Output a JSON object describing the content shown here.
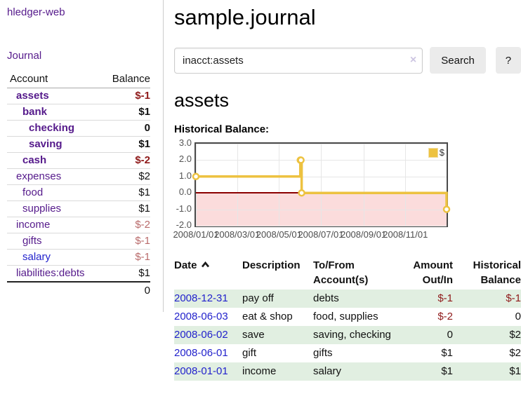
{
  "app": {
    "brand": "hledger-web",
    "nav_journal": "Journal"
  },
  "sidebar": {
    "accounts_table": {
      "headers": [
        "Account",
        "Balance"
      ],
      "rows": [
        {
          "name": "assets",
          "depth": 1,
          "bold": true,
          "balance": "$-1"
        },
        {
          "name": "bank",
          "depth": 2,
          "bold": true,
          "balance": "$1"
        },
        {
          "name": "checking",
          "depth": 3,
          "bold": true,
          "balance": "0"
        },
        {
          "name": "saving",
          "depth": 3,
          "bold": true,
          "balance": "$1"
        },
        {
          "name": "cash",
          "depth": 2,
          "bold": true,
          "balance": "$-2"
        },
        {
          "name": "expenses",
          "depth": 1,
          "bold": false,
          "balance": "$2"
        },
        {
          "name": "food",
          "depth": 2,
          "bold": false,
          "balance": "$1"
        },
        {
          "name": "supplies",
          "depth": 2,
          "bold": false,
          "balance": "$1"
        },
        {
          "name": "income",
          "depth": 1,
          "bold": false,
          "balance": "$-2"
        },
        {
          "name": "gifts",
          "depth": 2,
          "bold": false,
          "balance": "$-1"
        },
        {
          "name": "salary",
          "depth": 2,
          "bold": false,
          "balance": "$-1",
          "variant": "unvisited"
        },
        {
          "name": "liabilities:debts",
          "depth": 1,
          "bold": false,
          "balance": "$1"
        }
      ],
      "total": "0"
    }
  },
  "main": {
    "title": "sample.journal",
    "search": {
      "value": "inacct:assets",
      "clear_icon": "×",
      "button": "Search",
      "help_button": "?"
    },
    "account_heading": "assets",
    "chart_label": "Historical Balance:"
  },
  "chart_data": {
    "type": "line",
    "title": "Historical Balance:",
    "style": "steps",
    "series": [
      {
        "name": "$",
        "color": "#edc240",
        "points": [
          [
            "2008-01-01",
            1
          ],
          [
            "2008-06-01",
            2
          ],
          [
            "2008-06-02",
            2
          ],
          [
            "2008-06-03",
            0
          ],
          [
            "2008-12-31",
            -1
          ]
        ]
      }
    ],
    "y_ticks": [
      "3.0",
      "2.0",
      "1.0",
      "0.0",
      "-1.0",
      "-2.0"
    ],
    "x_ticks": [
      "2008/01/01",
      "2008/03/01",
      "2008/05/01",
      "2008/07/01",
      "2008/09/01",
      "2008/11/01"
    ],
    "ylim": [
      -2,
      3
    ],
    "xlim": [
      "2008-01-01",
      "2008-12-31"
    ],
    "grid": true,
    "legend_position": "top-right",
    "negative_region_fill": "#fbdcdc",
    "zero_line_color": "#8b0000"
  },
  "transactions": {
    "headers": [
      "Date",
      "Description",
      "To/From Account(s)",
      "Amount Out/In",
      "Historical Balance"
    ],
    "rows": [
      {
        "date": "2008-12-31",
        "description": "pay off",
        "accounts": "debts",
        "amount": "$-1",
        "balance": "$-1"
      },
      {
        "date": "2008-06-03",
        "description": "eat & shop",
        "accounts": "food, supplies",
        "amount": "$-2",
        "balance": "0"
      },
      {
        "date": "2008-06-02",
        "description": "save",
        "accounts": "saving, checking",
        "amount": "0",
        "balance": "$2"
      },
      {
        "date": "2008-06-01",
        "description": "gift",
        "accounts": "gifts",
        "amount": "$1",
        "balance": "$2"
      },
      {
        "date": "2008-01-01",
        "description": "income",
        "accounts": "salary",
        "amount": "$1",
        "balance": "$1"
      }
    ]
  }
}
